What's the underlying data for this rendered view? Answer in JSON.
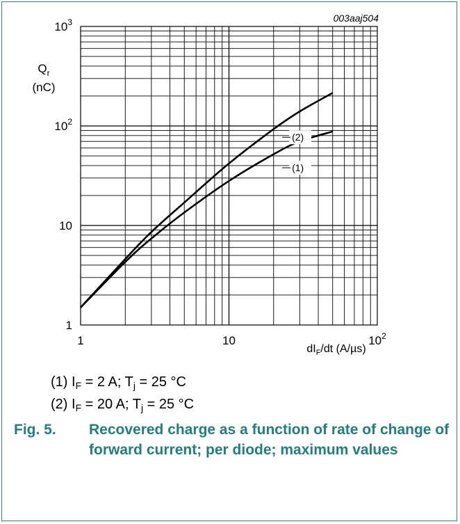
{
  "chart_data": {
    "type": "line",
    "x_scale": "log",
    "y_scale": "log",
    "xlim": [
      1,
      100
    ],
    "ylim": [
      1,
      1000
    ],
    "grid": true,
    "code": "003aaj504",
    "ylabel_main": "Q",
    "ylabel_sub": "r",
    "ylabel_unit": "(nC)",
    "xlabel_main": "dI",
    "xlabel_sub": "F",
    "xlabel_rest": "/dt (A/µs)",
    "x_ticks": [
      {
        "value": 1,
        "base": "1",
        "exp": ""
      },
      {
        "value": 10,
        "base": "10",
        "exp": ""
      },
      {
        "value": 100,
        "base": "10",
        "exp": "2"
      }
    ],
    "y_ticks": [
      {
        "value": 1,
        "base": "1",
        "exp": ""
      },
      {
        "value": 10,
        "base": "10",
        "exp": ""
      },
      {
        "value": 100,
        "base": "10",
        "exp": "2"
      },
      {
        "value": 1000,
        "base": "10",
        "exp": "3"
      }
    ],
    "series": [
      {
        "name": "(1)",
        "label_at": {
          "x": 26,
          "y": 38
        },
        "x": [
          1,
          2,
          3,
          5,
          10,
          20,
          30,
          50
        ],
        "y": [
          1.5,
          4.3,
          7.4,
          13.5,
          28,
          52,
          70,
          88
        ]
      },
      {
        "name": "(2)",
        "label_at": {
          "x": 26,
          "y": 77
        },
        "x": [
          1,
          2,
          3,
          5,
          10,
          20,
          30,
          50
        ],
        "y": [
          1.5,
          4.6,
          8.6,
          17,
          42,
          93,
          140,
          215
        ]
      }
    ]
  },
  "legend": {
    "item1": {
      "pre": "(1) I",
      "s1": "F",
      "mid": " = 2 A; T",
      "s2": "j",
      "post": " = 25 °C"
    },
    "item2": {
      "pre": "(2) I",
      "s1": "F",
      "mid": " = 20 A; T",
      "s2": "j",
      "post": " = 25 °C"
    }
  },
  "caption": {
    "number": "Fig. 5.",
    "text": "Recovered charge as a function of rate of change of forward current; per diode; maximum values"
  }
}
